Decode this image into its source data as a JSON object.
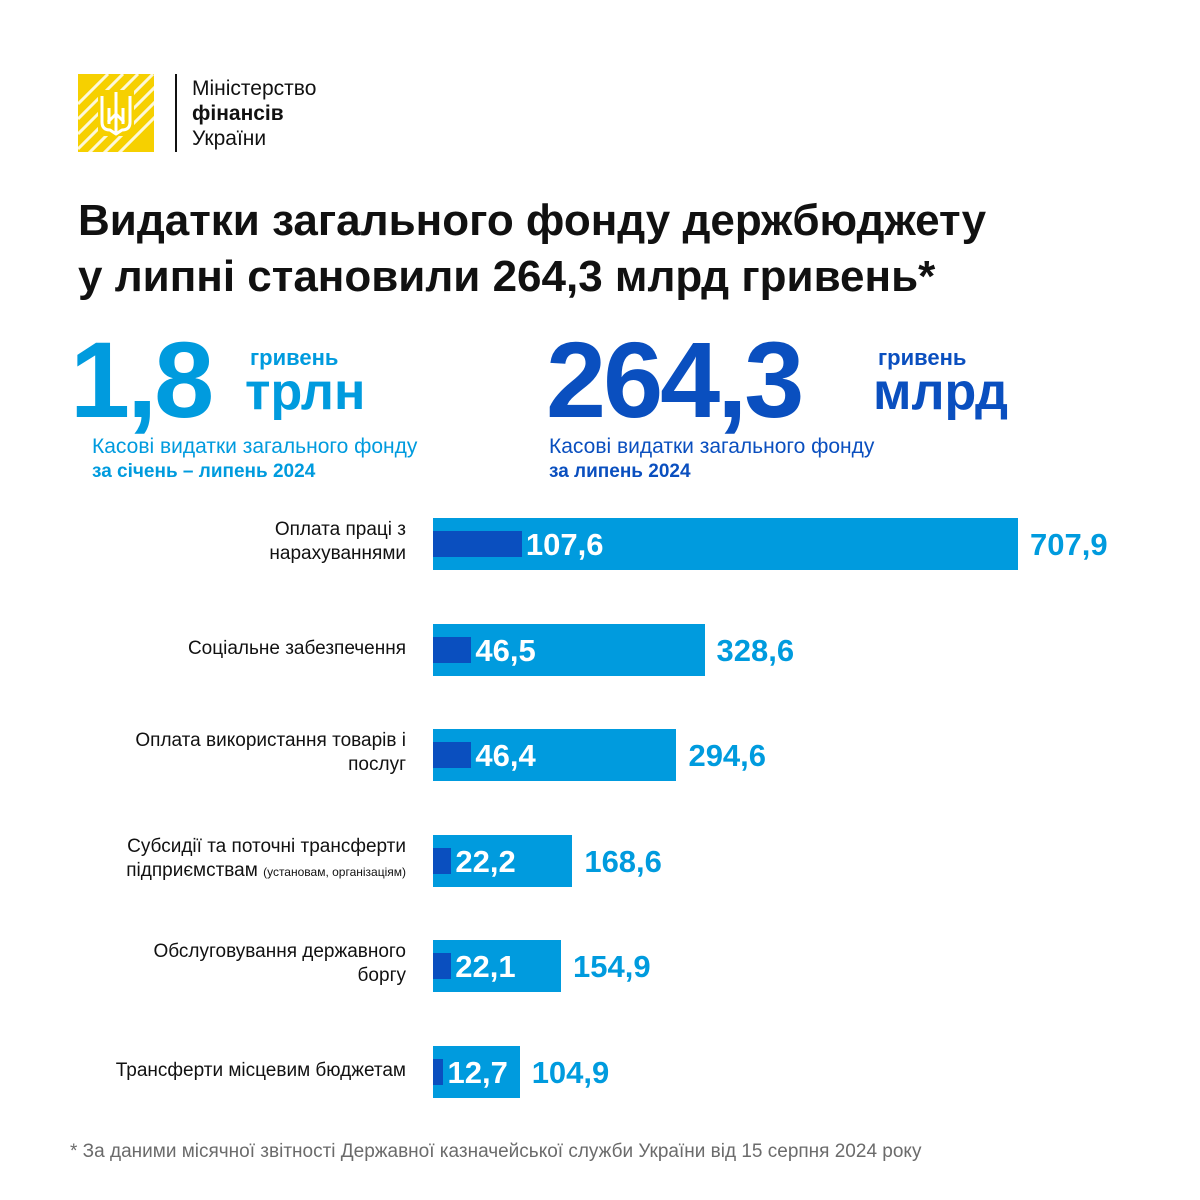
{
  "logo": {
    "line1": "Міністерство",
    "line2": "фінансів",
    "line3": "України",
    "emblem": "ukraine-trident-icon",
    "color": "#F6D000"
  },
  "title": {
    "line1": "Видатки загального фонду держбюджету",
    "line2": "у липні становили 264,3 млрд гривень*"
  },
  "kpi_period": {
    "value": "1,8",
    "unit_small": "гривень",
    "unit_big": "трлн",
    "desc_line1": "Касові видатки загального фонду",
    "desc_line2": "за січень – липень 2024",
    "color": "#009BDE"
  },
  "kpi_month": {
    "value": "264,3",
    "unit_small": "гривень",
    "unit_big": "млрд",
    "desc_line1": "Касові видатки загального фонду",
    "desc_line2": "за липень 2024",
    "color": "#0A4FBF"
  },
  "chart_data": {
    "type": "bar",
    "orientation": "horizontal",
    "categories": [
      {
        "line1": "Оплата праці з",
        "line2": "нарахуваннями",
        "note": ""
      },
      {
        "line1": "Соціальне забезпечення",
        "line2": "",
        "note": ""
      },
      {
        "line1": "Оплата використання товарів і",
        "line2": "послуг",
        "note": ""
      },
      {
        "line1": "Субсидії та поточні трансферти",
        "line2": "підприємствам",
        "note": "(установам, організаціям)"
      },
      {
        "line1": "Обслуговування державного",
        "line2": "боргу",
        "note": ""
      },
      {
        "line1": "Трансферти місцевим бюджетам",
        "line2": "",
        "note": ""
      }
    ],
    "series": [
      {
        "values": [
          707.9,
          328.6,
          294.6,
          168.6,
          154.9,
          104.9
        ],
        "labels": [
          "707,9",
          "328,6",
          "294,6",
          "168,6",
          "154,9",
          "104,9"
        ],
        "color": "#009BDE"
      },
      {
        "values": [
          107.6,
          46.5,
          46.4,
          22.2,
          22.1,
          12.7
        ],
        "labels": [
          "107,6",
          "46,5",
          "46,4",
          "22,2",
          "22,1",
          "12,7"
        ],
        "color": "#0A4FBF"
      }
    ]
  },
  "footnote": "* За даними місячної звітності Державної казначейської служби України від 15 серпня 2024 року"
}
